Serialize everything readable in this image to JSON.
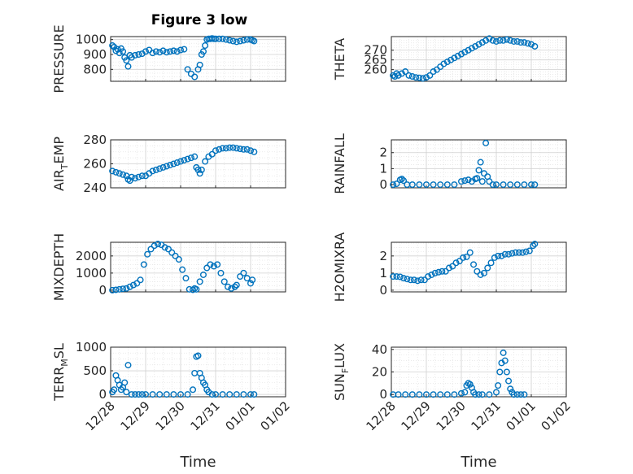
{
  "figure_title": "Figure 3 low",
  "marker_color": "#0072BD",
  "chart_data": [
    {
      "type": "scatter",
      "title": "Figure 3 low",
      "ylabel": "PRESSURE",
      "xlabel": "",
      "xlim": [
        0,
        5
      ],
      "ylim": [
        720,
        1020
      ],
      "yticks": [
        800,
        900,
        1000
      ],
      "x": [
        0.05,
        0.1,
        0.15,
        0.2,
        0.25,
        0.3,
        0.35,
        0.4,
        0.45,
        0.5,
        0.55,
        0.6,
        0.7,
        0.8,
        0.9,
        1.0,
        1.1,
        1.2,
        1.3,
        1.4,
        1.5,
        1.6,
        1.7,
        1.8,
        1.9,
        2.0,
        2.1,
        2.2,
        2.3,
        2.4,
        2.5,
        2.55,
        2.6,
        2.65,
        2.7,
        2.75,
        2.8,
        2.85,
        2.9,
        2.95,
        3.0,
        3.1,
        3.2,
        3.3,
        3.4,
        3.5,
        3.6,
        3.7,
        3.8,
        3.9,
        4.0,
        4.05,
        4.1
      ],
      "y": [
        960,
        950,
        925,
        935,
        910,
        940,
        920,
        880,
        860,
        820,
        895,
        880,
        895,
        900,
        905,
        920,
        930,
        910,
        920,
        915,
        925,
        915,
        920,
        925,
        920,
        930,
        935,
        800,
        770,
        750,
        800,
        830,
        900,
        920,
        960,
        1000,
        1005,
        1005,
        1008,
        1005,
        1005,
        1005,
        1005,
        1000,
        995,
        990,
        985,
        990,
        995,
        1000,
        1000,
        995,
        990
      ],
      "x_ticklabels": [
        "12/28",
        "12/29",
        "12/30",
        "12/31",
        "01/01",
        "01/02"
      ]
    },
    {
      "type": "scatter",
      "title": "",
      "ylabel": "THETA",
      "xlabel": "",
      "xlim": [
        0,
        5
      ],
      "ylim": [
        254,
        277
      ],
      "yticks": [
        260,
        265,
        270
      ],
      "x": [
        0.05,
        0.1,
        0.15,
        0.2,
        0.3,
        0.4,
        0.5,
        0.6,
        0.7,
        0.8,
        0.9,
        1.0,
        1.1,
        1.2,
        1.3,
        1.4,
        1.5,
        1.6,
        1.7,
        1.8,
        1.9,
        2.0,
        2.1,
        2.2,
        2.3,
        2.4,
        2.5,
        2.6,
        2.7,
        2.8,
        2.9,
        3.0,
        3.1,
        3.2,
        3.3,
        3.4,
        3.5,
        3.6,
        3.7,
        3.8,
        3.9,
        4.0,
        4.1
      ],
      "y": [
        257,
        256.5,
        258,
        257,
        258,
        259,
        257,
        256.5,
        256,
        255.8,
        255.5,
        256,
        257,
        259,
        260,
        261.5,
        263,
        264,
        265,
        266,
        267,
        268,
        269,
        270,
        271,
        272,
        273,
        274,
        275,
        276,
        275,
        274.5,
        275,
        275,
        275.5,
        275,
        274.5,
        274.5,
        274,
        274,
        273.5,
        273,
        272
      ],
      "x_ticklabels": [
        "12/28",
        "12/29",
        "12/30",
        "12/31",
        "01/01",
        "01/02"
      ]
    },
    {
      "type": "scatter",
      "title": "",
      "ylabel": "AIR_TEMP",
      "xlabel": "",
      "xlim": [
        0,
        5
      ],
      "ylim": [
        240,
        280
      ],
      "yticks": [
        240,
        260,
        280
      ],
      "x": [
        0.05,
        0.15,
        0.25,
        0.35,
        0.45,
        0.5,
        0.55,
        0.6,
        0.7,
        0.8,
        0.9,
        1.0,
        1.1,
        1.2,
        1.3,
        1.4,
        1.5,
        1.6,
        1.7,
        1.8,
        1.9,
        2.0,
        2.1,
        2.2,
        2.3,
        2.4,
        2.45,
        2.5,
        2.55,
        2.6,
        2.7,
        2.8,
        2.9,
        3.0,
        3.1,
        3.2,
        3.3,
        3.4,
        3.5,
        3.6,
        3.7,
        3.8,
        3.9,
        4.0,
        4.1
      ],
      "y": [
        254,
        253,
        252,
        251,
        250,
        247,
        246,
        249,
        248,
        249,
        250,
        250,
        252,
        254,
        255,
        256,
        257,
        258,
        259,
        260,
        261,
        262,
        263,
        264,
        265,
        266,
        257,
        255,
        252,
        255,
        262,
        266,
        268,
        271,
        272,
        273,
        273,
        273.5,
        273.5,
        273,
        272.5,
        272,
        272,
        271,
        270
      ],
      "x_ticklabels": [
        "12/28",
        "12/29",
        "12/30",
        "12/31",
        "01/01",
        "01/02"
      ]
    },
    {
      "type": "scatter",
      "title": "",
      "ylabel": "RAINFALL",
      "xlabel": "",
      "xlim": [
        0,
        5
      ],
      "ylim": [
        -0.2,
        2.8
      ],
      "yticks": [
        0,
        1,
        2
      ],
      "x": [
        0.05,
        0.15,
        0.25,
        0.3,
        0.35,
        0.45,
        0.6,
        0.8,
        1.0,
        1.2,
        1.4,
        1.6,
        1.8,
        2.0,
        2.1,
        2.2,
        2.3,
        2.4,
        2.45,
        2.5,
        2.55,
        2.6,
        2.65,
        2.7,
        2.75,
        2.8,
        2.9,
        3.0,
        3.2,
        3.4,
        3.6,
        3.8,
        4.0,
        4.1
      ],
      "y": [
        0,
        0.05,
        0.3,
        0.35,
        0.25,
        0,
        0,
        0,
        0,
        0,
        0,
        0,
        0,
        0.2,
        0.25,
        0.3,
        0.2,
        0.35,
        0.4,
        0.9,
        1.4,
        0.2,
        0.7,
        2.6,
        0.5,
        0.2,
        0,
        0,
        0,
        0,
        0,
        0,
        0,
        0
      ],
      "x_ticklabels": [
        "12/28",
        "12/29",
        "12/30",
        "12/31",
        "01/01",
        "01/02"
      ]
    },
    {
      "type": "scatter",
      "title": "",
      "ylabel": "MIXDEPTH",
      "xlabel": "",
      "xlim": [
        0,
        5
      ],
      "ylim": [
        -100,
        2800
      ],
      "yticks": [
        0,
        1000,
        2000
      ],
      "x": [
        0.05,
        0.15,
        0.25,
        0.35,
        0.45,
        0.55,
        0.65,
        0.75,
        0.85,
        0.95,
        1.05,
        1.15,
        1.25,
        1.35,
        1.45,
        1.55,
        1.65,
        1.75,
        1.85,
        1.95,
        2.05,
        2.15,
        2.25,
        2.35,
        2.4,
        2.45,
        2.55,
        2.65,
        2.75,
        2.85,
        2.95,
        3.05,
        3.15,
        3.25,
        3.35,
        3.45,
        3.55,
        3.6,
        3.7,
        3.8,
        3.9,
        4.0,
        4.05
      ],
      "y": [
        0,
        20,
        50,
        80,
        100,
        200,
        300,
        400,
        600,
        1500,
        2100,
        2400,
        2600,
        2700,
        2650,
        2500,
        2400,
        2200,
        2000,
        1800,
        1200,
        700,
        50,
        20,
        100,
        50,
        500,
        900,
        1300,
        1500,
        1400,
        1500,
        1000,
        500,
        200,
        100,
        200,
        300,
        800,
        1000,
        700,
        400,
        600
      ],
      "x_ticklabels": [
        "12/28",
        "12/29",
        "12/30",
        "12/31",
        "01/01",
        "01/02"
      ]
    },
    {
      "type": "scatter",
      "title": "",
      "ylabel": "H2OMIXRA",
      "xlabel": "",
      "xlim": [
        0,
        5
      ],
      "ylim": [
        -0.1,
        2.8
      ],
      "yticks": [
        0,
        1,
        2
      ],
      "x": [
        0.05,
        0.15,
        0.25,
        0.35,
        0.45,
        0.55,
        0.65,
        0.75,
        0.85,
        0.95,
        1.05,
        1.15,
        1.25,
        1.35,
        1.45,
        1.55,
        1.65,
        1.75,
        1.85,
        1.95,
        2.05,
        2.15,
        2.25,
        2.35,
        2.45,
        2.55,
        2.65,
        2.75,
        2.85,
        2.95,
        3.05,
        3.15,
        3.25,
        3.35,
        3.45,
        3.55,
        3.65,
        3.75,
        3.85,
        3.95,
        4.05,
        4.1
      ],
      "y": [
        0.8,
        0.8,
        0.78,
        0.7,
        0.65,
        0.6,
        0.6,
        0.55,
        0.6,
        0.6,
        0.8,
        0.9,
        1.0,
        1.05,
        1.1,
        1.1,
        1.3,
        1.4,
        1.6,
        1.7,
        1.9,
        1.95,
        2.2,
        1.5,
        1.1,
        0.9,
        1.0,
        1.3,
        1.6,
        1.9,
        2.0,
        2.0,
        2.1,
        2.1,
        2.15,
        2.2,
        2.2,
        2.2,
        2.25,
        2.3,
        2.6,
        2.7
      ],
      "x_ticklabels": [
        "12/28",
        "12/29",
        "12/30",
        "12/31",
        "01/01",
        "01/02"
      ]
    },
    {
      "type": "scatter",
      "title": "",
      "ylabel": "TERR_MSL",
      "xlabel": "Time",
      "xlim": [
        0,
        5
      ],
      "ylim": [
        -50,
        1000
      ],
      "yticks": [
        0,
        500,
        1000
      ],
      "x": [
        0.05,
        0.1,
        0.15,
        0.2,
        0.25,
        0.3,
        0.35,
        0.4,
        0.45,
        0.5,
        0.6,
        0.7,
        0.8,
        0.9,
        1.0,
        1.2,
        1.4,
        1.6,
        1.8,
        2.0,
        2.2,
        2.35,
        2.4,
        2.45,
        2.5,
        2.55,
        2.6,
        2.65,
        2.7,
        2.75,
        2.8,
        2.9,
        3.0,
        3.2,
        3.4,
        3.6,
        3.8,
        4.0,
        4.1
      ],
      "y": [
        50,
        100,
        400,
        300,
        200,
        100,
        150,
        250,
        50,
        620,
        0,
        0,
        0,
        0,
        0,
        0,
        0,
        0,
        0,
        0,
        0,
        100,
        450,
        800,
        820,
        450,
        350,
        250,
        200,
        100,
        50,
        0,
        0,
        0,
        0,
        0,
        0,
        0,
        0
      ],
      "x_ticklabels": [
        "12/28",
        "12/29",
        "12/30",
        "12/31",
        "01/01",
        "01/02"
      ]
    },
    {
      "type": "scatter",
      "title": "",
      "ylabel": "SUN_FLUX",
      "xlabel": "Time",
      "xlim": [
        0,
        5
      ],
      "ylim": [
        -2,
        42
      ],
      "yticks": [
        0,
        20,
        40
      ],
      "x": [
        0.05,
        0.2,
        0.4,
        0.6,
        0.8,
        1.0,
        1.2,
        1.4,
        1.6,
        1.8,
        2.0,
        2.1,
        2.15,
        2.2,
        2.25,
        2.3,
        2.35,
        2.4,
        2.5,
        2.6,
        2.8,
        3.0,
        3.05,
        3.1,
        3.15,
        3.2,
        3.25,
        3.3,
        3.35,
        3.4,
        3.45,
        3.5,
        3.6,
        3.7,
        3.8
      ],
      "y": [
        0,
        0,
        0,
        0,
        0,
        0,
        0,
        0,
        0,
        0,
        1,
        2,
        8,
        10,
        9,
        6,
        2,
        0,
        0,
        0,
        0,
        2,
        8,
        20,
        28,
        37,
        30,
        20,
        12,
        5,
        2,
        0,
        0,
        0,
        0
      ],
      "x_ticklabels": [
        "12/28",
        "12/29",
        "12/30",
        "12/31",
        "01/01",
        "01/02"
      ]
    }
  ]
}
